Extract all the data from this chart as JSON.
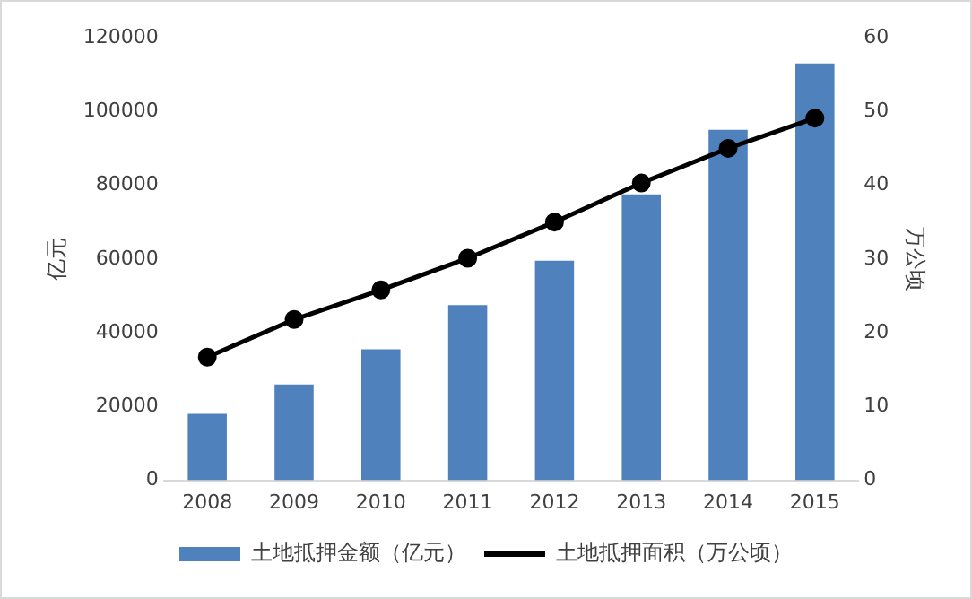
{
  "chart_data": {
    "type": "bar",
    "categories": [
      "2008",
      "2009",
      "2010",
      "2011",
      "2012",
      "2013",
      "2014",
      "2015"
    ],
    "series": [
      {
        "name": "土地抵押金额（亿元）",
        "color": "#4f81bd",
        "values": [
          18000,
          26000,
          35500,
          47500,
          59500,
          77500,
          95000,
          113000
        ]
      },
      {
        "name": "土地抵押面积（万公顷）",
        "type": "line",
        "axis": "y2",
        "color": "#000000",
        "values": [
          16.7,
          21.8,
          25.8,
          30.1,
          35,
          40.3,
          45,
          49.1
        ]
      }
    ],
    "ylabel": "亿元",
    "y2label": "万公顷",
    "ylim": [
      0,
      120000
    ],
    "yticks": [
      0,
      20000,
      40000,
      60000,
      80000,
      100000,
      120000
    ],
    "y2lim": [
      0,
      60
    ],
    "y2ticks": [
      0,
      10,
      20,
      30,
      40,
      50,
      60
    ],
    "grid": false,
    "legend": "bottom",
    "marker": "circle",
    "line_style": "solid"
  }
}
